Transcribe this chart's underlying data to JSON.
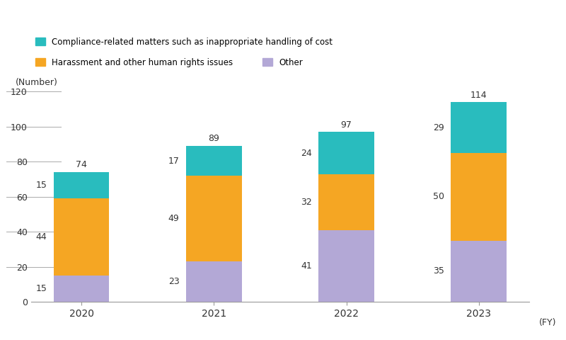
{
  "years": [
    "2020",
    "2021",
    "2022",
    "2023"
  ],
  "other": [
    15,
    23,
    41,
    35
  ],
  "harassment": [
    44,
    49,
    32,
    50
  ],
  "compliance": [
    15,
    17,
    24,
    29
  ],
  "totals": [
    74,
    89,
    97,
    114
  ],
  "colors": {
    "compliance": "#29BCBE",
    "harassment": "#F5A623",
    "other": "#B3A8D6"
  },
  "legend_labels": {
    "compliance": "Compliance-related matters such as inappropriate handling of cost",
    "harassment": "Harassment and other human rights issues",
    "other": "Other"
  },
  "ylabel": "(Number)",
  "xlabel": "(FY)",
  "ylim": [
    0,
    130
  ],
  "yticks": [
    0,
    20,
    40,
    60,
    80,
    100,
    120
  ],
  "bar_width": 0.42,
  "figsize": [
    8.0,
    4.8
  ],
  "dpi": 100,
  "bg_color": "#ffffff"
}
